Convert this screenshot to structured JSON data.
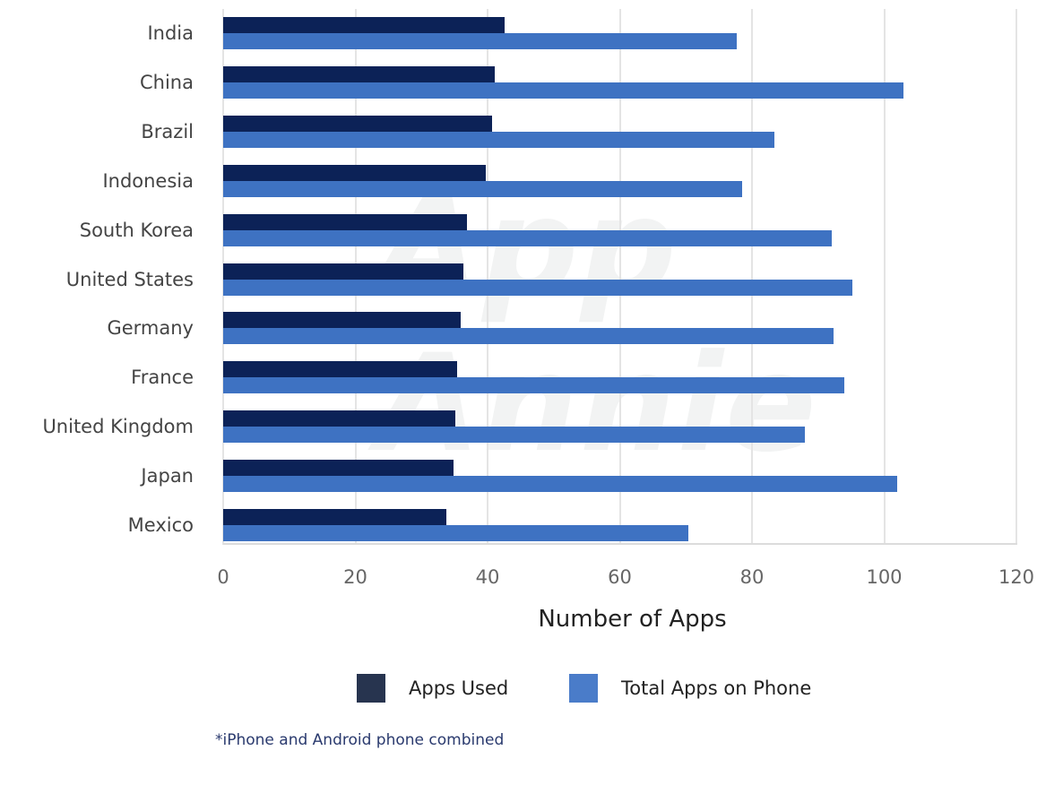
{
  "chart_data": {
    "type": "bar",
    "orientation": "horizontal",
    "title": "",
    "xlabel": "Number of Apps",
    "ylabel": "",
    "xlim": [
      0,
      120
    ],
    "xticks": [
      0,
      20,
      40,
      60,
      80,
      100,
      120
    ],
    "grid": true,
    "legend_position": "bottom",
    "categories": [
      "India",
      "China",
      "Brazil",
      "Indonesia",
      "South Korea",
      "United States",
      "Germany",
      "France",
      "United Kingdom",
      "Japan",
      "Mexico"
    ],
    "series": [
      {
        "name": "Apps Used",
        "color": "#0c2257",
        "values": [
          42.6,
          41.1,
          40.7,
          39.7,
          36.9,
          36.3,
          35.9,
          35.4,
          35.1,
          34.8,
          33.8
        ]
      },
      {
        "name": "Total Apps on Phone",
        "color": "#3e72c2",
        "values": [
          77.7,
          102.9,
          83.4,
          78.5,
          92.1,
          95.2,
          92.3,
          94.0,
          88.0,
          102.0,
          70.4
        ]
      }
    ],
    "footnote": "*iPhone and Android phone combined",
    "watermark": "App Annie"
  },
  "legend": {
    "items": [
      {
        "label": "Apps Used",
        "color": "#27344f"
      },
      {
        "label": "Total Apps on Phone",
        "color": "#4a7cc9"
      }
    ]
  }
}
